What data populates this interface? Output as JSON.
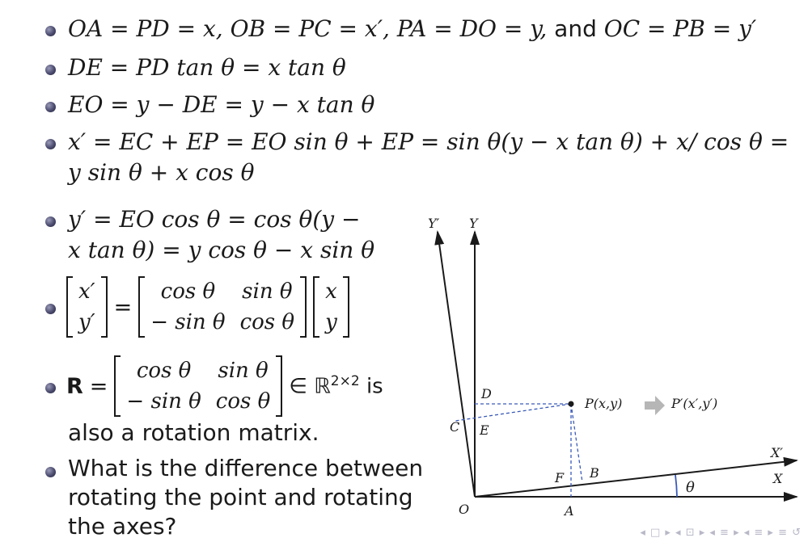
{
  "lines": {
    "l1": {
      "p1": "OA = PD = x, OB = PC = x′, PA = DO = y,",
      "and": " and ",
      "p2": "OC = PB = y′"
    },
    "l2": "DE = PD tan θ = x tan θ",
    "l3": "EO = y − DE = y − x tan θ",
    "l4a": "x′ = EC + EP = EO sin θ + EP = sin θ(y − x tan θ) + x/ cos θ =",
    "l4b": "y sin θ + x cos θ",
    "l5a": "y′ = EO cos θ = cos θ(y −",
    "l5b": "x tan θ) = y cos θ − x sin θ"
  },
  "eq1": {
    "vec_left": [
      "x′",
      "y′"
    ],
    "equals": "=",
    "matrix": [
      "cos θ",
      "sin θ",
      "− sin θ",
      "cos θ"
    ],
    "vec_right": [
      "x",
      "y"
    ]
  },
  "eq2": {
    "symbol": "R",
    "equals": "=",
    "matrix": [
      "cos θ",
      "sin θ",
      "− sin θ",
      "cos θ"
    ],
    "membership": "∈ ℝ",
    "superscript": "2×2",
    "is": " is",
    "continuation": "also a rotation matrix."
  },
  "question": [
    "What is the difference between",
    "rotating the point and rotating",
    "the axes?"
  ],
  "diagram": {
    "labels": {
      "Y_prime": "Y′",
      "Y": "Y",
      "X_prime": "X′",
      "X": "X",
      "O": "O",
      "A": "A",
      "B": "B",
      "C": "C",
      "D": "D",
      "E": "E",
      "F": "F",
      "theta": "θ"
    },
    "point": "P(x,y)",
    "point_prime": "P′(x′,y′)"
  },
  "nav_glyphs": "◂ □ ▸ ◂ ⊡ ▸ ◂ ≡ ▸ ◂ ≡ ▸   ≡   ↺"
}
